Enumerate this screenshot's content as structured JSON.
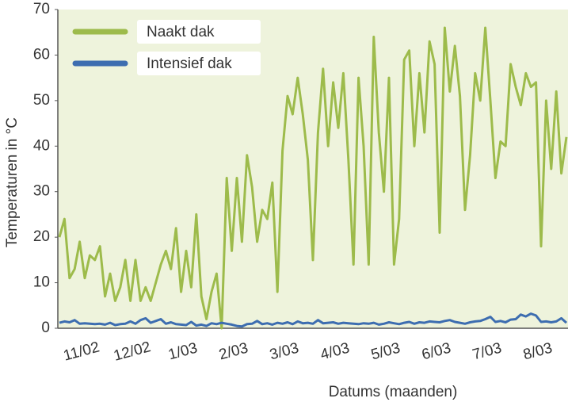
{
  "chart_data": {
    "type": "line",
    "ylabel": "Temperaturen in °C",
    "xlabel": "Datums (maanden)",
    "categories": [
      "11/02",
      null,
      null,
      null,
      null,
      null,
      null,
      null,
      null,
      null,
      "12/02",
      null,
      null,
      null,
      null,
      null,
      null,
      null,
      null,
      null,
      "1/03",
      null,
      null,
      null,
      null,
      null,
      null,
      null,
      null,
      null,
      "2/03",
      null,
      null,
      null,
      null,
      null,
      null,
      null,
      null,
      null,
      "3/03",
      null,
      null,
      null,
      null,
      null,
      null,
      null,
      null,
      null,
      "4/03",
      null,
      null,
      null,
      null,
      null,
      null,
      null,
      null,
      null,
      "5/03",
      null,
      null,
      null,
      null,
      null,
      null,
      null,
      null,
      null,
      "6/03",
      null,
      null,
      null,
      null,
      null,
      null,
      null,
      null,
      null,
      "7/03",
      null,
      null,
      null,
      null,
      null,
      null,
      null,
      null,
      null,
      "8/03",
      null,
      null,
      null,
      null,
      null,
      null,
      null,
      null,
      null,
      null
    ],
    "series": [
      {
        "name": "Naakt dak",
        "color": "#9dbb4b",
        "values": [
          20,
          24,
          11,
          13,
          19,
          11,
          16,
          15,
          18,
          7,
          12,
          6,
          9,
          15,
          6,
          15,
          6,
          9,
          6,
          10,
          14,
          17,
          13,
          22,
          8,
          17,
          9,
          25,
          7,
          2,
          8,
          12,
          0,
          33,
          17,
          33,
          19,
          38,
          31,
          19,
          26,
          24,
          32,
          8,
          39,
          51,
          47,
          55,
          47,
          37,
          15,
          43,
          57,
          40,
          54,
          44,
          56,
          37,
          14,
          55,
          40,
          14,
          64,
          43,
          30,
          55,
          14,
          24,
          59,
          61,
          40,
          56,
          43,
          63,
          58,
          21,
          66,
          52,
          62,
          51,
          26,
          38,
          56,
          50,
          66,
          50,
          33,
          41,
          40,
          58,
          53,
          49,
          56,
          53,
          54,
          18,
          50,
          35,
          52,
          34,
          42
        ]
      },
      {
        "name": "Intensief dak",
        "color": "#3d6db0",
        "values": [
          1.2,
          1.5,
          1.3,
          1.8,
          1.0,
          1.1,
          1.0,
          0.9,
          1.0,
          0.8,
          1.2,
          0.7,
          0.9,
          1.0,
          1.5,
          1.0,
          1.8,
          2.2,
          1.2,
          1.6,
          2.0,
          1.0,
          1.3,
          0.9,
          0.8,
          0.7,
          1.4,
          0.6,
          0.8,
          0.5,
          1.1,
          0.9,
          1.2,
          1.0,
          0.8,
          0.5,
          0.4,
          0.9,
          1.0,
          1.6,
          0.9,
          1.1,
          0.8,
          1.2,
          1.0,
          1.3,
          0.9,
          1.5,
          1.1,
          1.2,
          1.0,
          1.8,
          1.1,
          1.2,
          1.3,
          1.0,
          1.2,
          1.1,
          1.0,
          0.9,
          1.1,
          1.0,
          1.2,
          0.8,
          1.0,
          1.3,
          1.1,
          0.9,
          1.2,
          1.4,
          1.0,
          1.3,
          1.2,
          1.5,
          1.4,
          1.3,
          1.6,
          1.8,
          1.4,
          1.2,
          1.0,
          1.3,
          1.5,
          1.6,
          2.0,
          2.5,
          1.4,
          1.6,
          1.3,
          1.9,
          2.0,
          3.0,
          2.6,
          3.2,
          2.8,
          1.4,
          1.5,
          1.3,
          1.5,
          2.2,
          1.2
        ]
      }
    ],
    "ylim": [
      0,
      70
    ],
    "yticks": [
      0,
      10,
      20,
      30,
      40,
      50,
      60,
      70
    ],
    "legend": "upper left"
  }
}
